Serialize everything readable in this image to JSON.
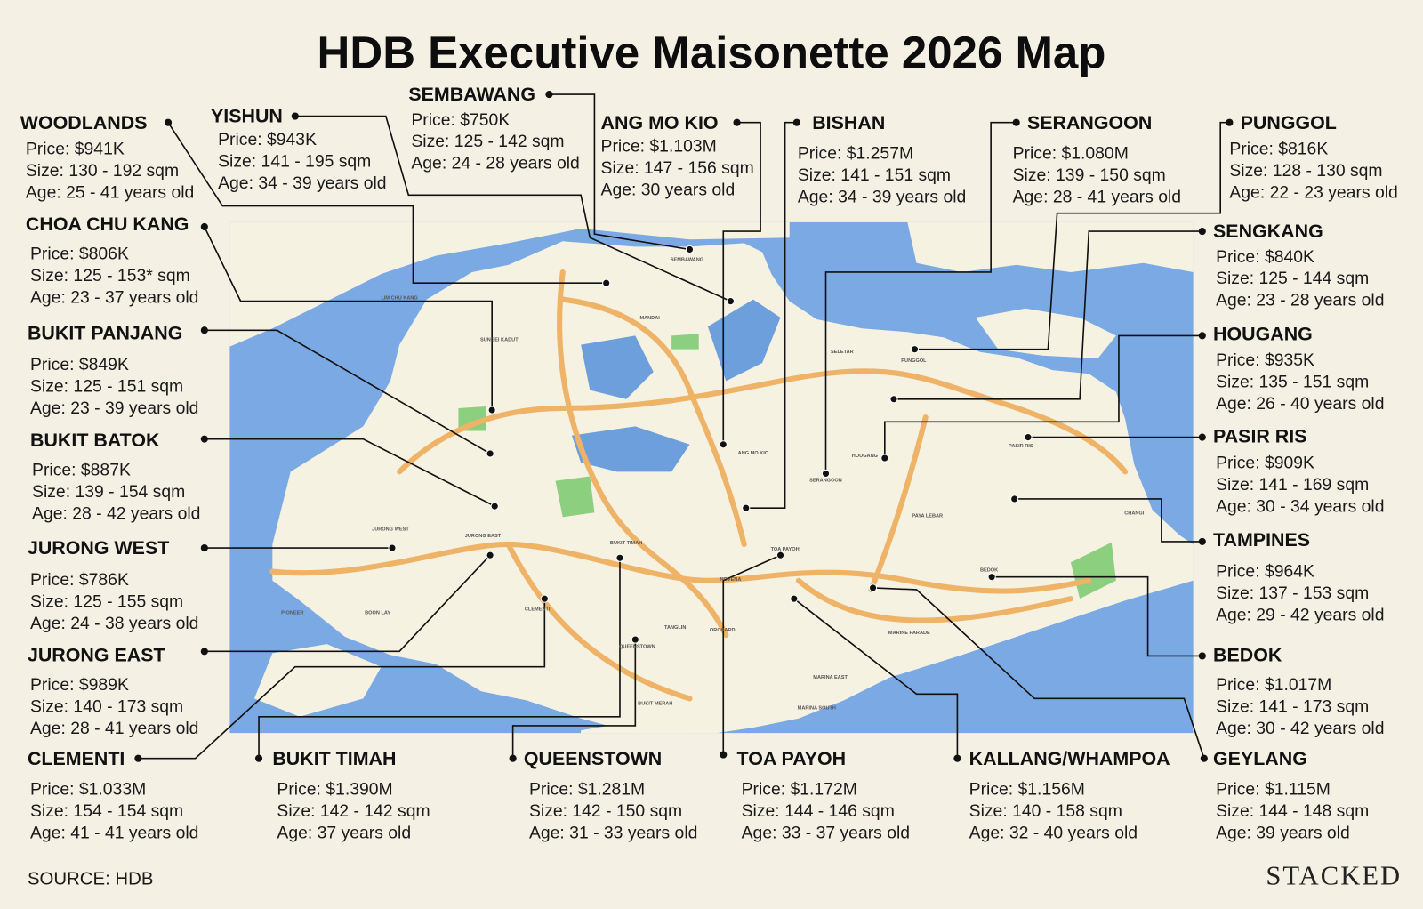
{
  "title": "HDB Executive Maisonette 2026 Map",
  "source": "SOURCE: HDB",
  "brand": "STACKED",
  "estates": [
    {
      "name": "WOODLANDS",
      "price": "Price: $941K",
      "size": "Size: 130 - 192 sqm",
      "age": "Age: 25 - 41 years old"
    },
    {
      "name": "YISHUN",
      "price": "Price: $943K",
      "size": "Size: 141 - 195 sqm",
      "age": "Age: 34 - 39 years old"
    },
    {
      "name": "SEMBAWANG",
      "price": "Price: $750K",
      "size": "Size: 125 - 142 sqm",
      "age": "Age: 24 - 28 years old"
    },
    {
      "name": "ANG MO KIO",
      "price": "Price: $1.103M",
      "size": "Size: 147 - 156 sqm",
      "age": "Age: 30 years old"
    },
    {
      "name": "BISHAN",
      "price": "Price: $1.257M",
      "size": "Size: 141 - 151 sqm",
      "age": "Age: 34 - 39 years old"
    },
    {
      "name": "SERANGOON",
      "price": "Price: $1.080M",
      "size": "Size: 139 - 150 sqm",
      "age": "Age: 28 - 41 years old"
    },
    {
      "name": "PUNGGOL",
      "price": "Price: $816K",
      "size": "Size: 128 - 130 sqm",
      "age": "Age: 22 - 23 years old"
    },
    {
      "name": "SENGKANG",
      "price": "Price: $840K",
      "size": "Size: 125 - 144 sqm",
      "age": "Age: 23 - 28 years old"
    },
    {
      "name": "HOUGANG",
      "price": "Price: $935K",
      "size": "Size: 135 - 151 sqm",
      "age": "Age: 26 - 40 years old"
    },
    {
      "name": "PASIR RIS",
      "price": "Price: $909K",
      "size": "Size: 141 - 169 sqm",
      "age": "Age: 30 - 34 years old"
    },
    {
      "name": "TAMPINES",
      "price": "Price: $964K",
      "size": "Size: 137 - 153 sqm",
      "age": "Age: 29 - 42 years old"
    },
    {
      "name": "BEDOK",
      "price": "Price: $1.017M",
      "size": "Size: 141 - 173 sqm",
      "age": "Age: 30 - 42 years old"
    },
    {
      "name": "GEYLANG",
      "price": "Price: $1.115M",
      "size": "Size: 144 - 148 sqm",
      "age": "Age: 39 years old"
    },
    {
      "name": "KALLANG/WHAMPOA",
      "price": "Price: $1.156M",
      "size": "Size: 140 - 158 sqm",
      "age": "Age: 32 - 40 years old"
    },
    {
      "name": "TOA PAYOH",
      "price": "Price: $1.172M",
      "size": "Size: 144 - 146 sqm",
      "age": "Age: 33 - 37 years old"
    },
    {
      "name": "QUEENSTOWN",
      "price": "Price: $1.281M",
      "size": "Size: 142 - 150 sqm",
      "age": "Age: 31 - 33 years old"
    },
    {
      "name": "BUKIT TIMAH",
      "price": "Price: $1.390M",
      "size": "Size: 142 - 142 sqm",
      "age": "Age: 37 years old"
    },
    {
      "name": "CLEMENTI",
      "price": "Price: $1.033M",
      "size": "Size: 154 - 154 sqm",
      "age": "Age: 41 - 41 years old"
    },
    {
      "name": "JURONG EAST",
      "price": "Price: $989K",
      "size": "Size: 140 - 173 sqm",
      "age": "Age: 28 - 41 years old"
    },
    {
      "name": "JURONG WEST",
      "price": "Price: $786K",
      "size": "Size: 125 - 155 sqm",
      "age": "Age: 24 - 38 years old"
    },
    {
      "name": "BUKIT BATOK",
      "price": "Price: $887K",
      "size": "Size: 139 - 154 sqm",
      "age": "Age: 28 - 42 years old"
    },
    {
      "name": "BUKIT PANJANG",
      "price": "Price: $849K",
      "size": "Size: 125 - 151 sqm",
      "age": "Age: 23 - 39 years old"
    },
    {
      "name": "CHOA CHU KANG",
      "price": "Price: $806K",
      "size": "Size: 125 - 153* sqm",
      "age": "Age: 23 - 37 years old"
    }
  ],
  "map_labels": [
    "LIM CHU KANG",
    "SUNGEI KADUT",
    "MANDAI",
    "SEMBAWANG",
    "SELETAR",
    "PUNGGOL",
    "ANG MO KIO",
    "SERANGOON",
    "HOUGANG",
    "PASIR RIS",
    "CHANGI",
    "PAYA LEBAR",
    "BEDOK",
    "MARINE PARADE",
    "TOA PAYOH",
    "NOVENA",
    "ORCHARD",
    "TANGLIN",
    "BUKIT TIMAH",
    "QUEENSTOWN",
    "BUKIT MERAH",
    "MARINA EAST",
    "MARINA SOUTH",
    "CLEMENTI",
    "JURONG EAST",
    "JURONG WEST",
    "BOON LAY",
    "PIONEER"
  ]
}
